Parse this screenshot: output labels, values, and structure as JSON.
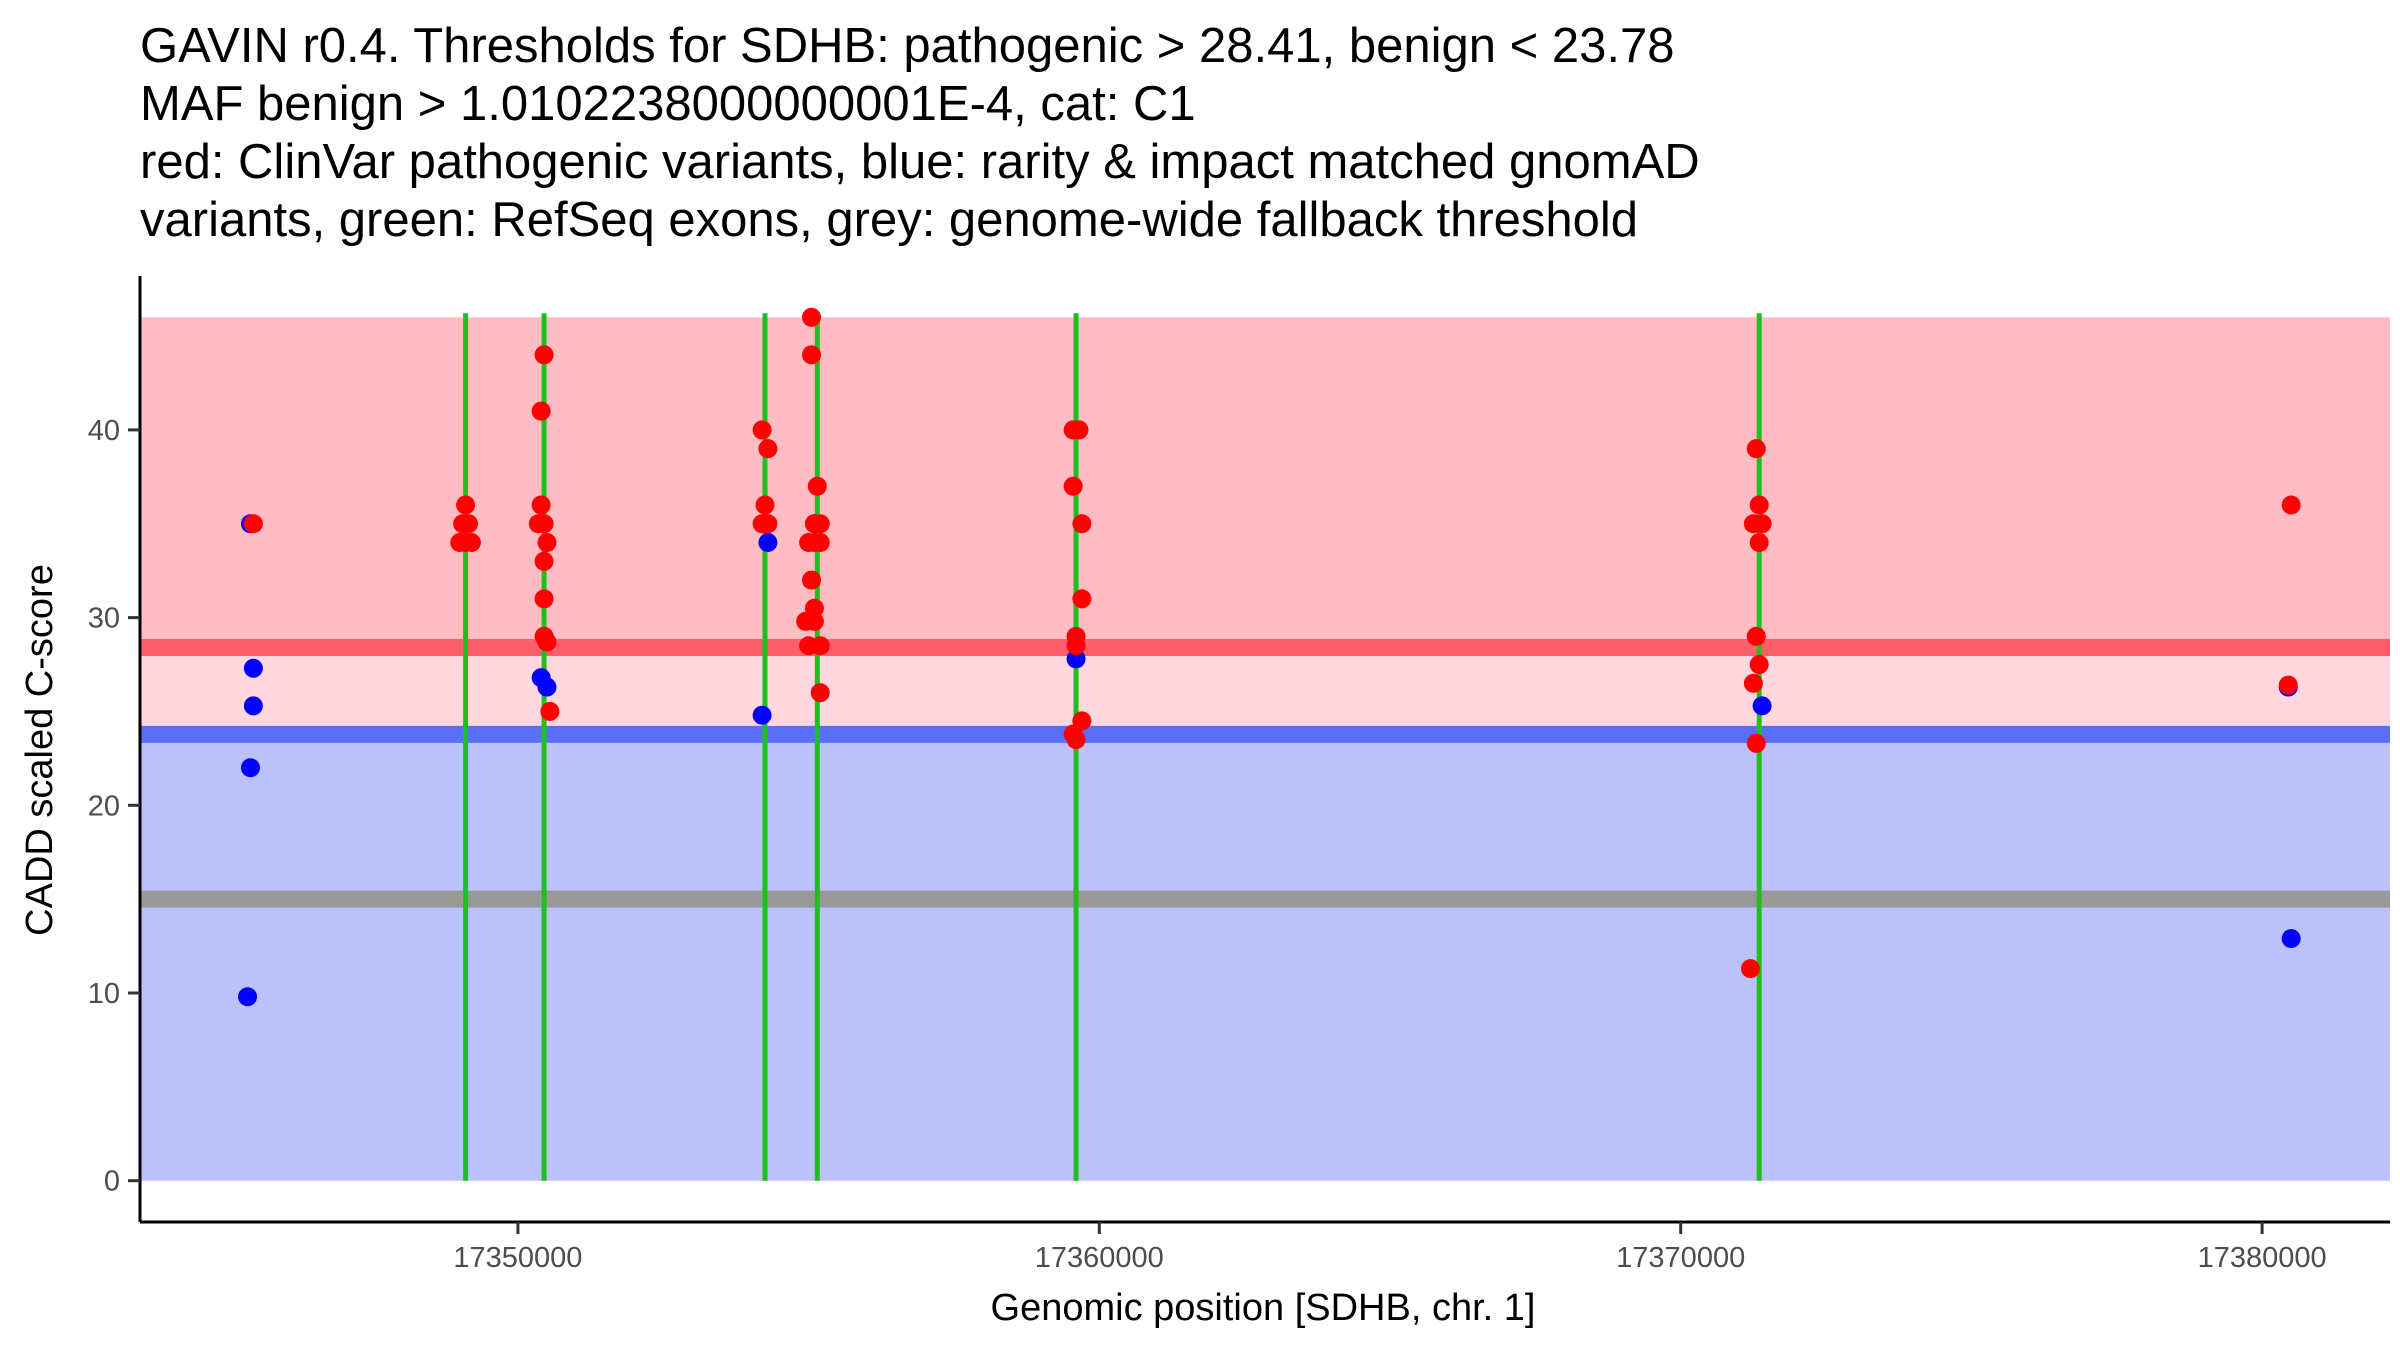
{
  "chart_data": {
    "type": "scatter",
    "title_lines": [
      "GAVIN r0.4. Thresholds for SDHB: pathogenic > 28.41, benign < 23.78",
      "MAF benign > 1.0102238000000001E-4, cat: C1",
      "red: ClinVar pathogenic variants, blue: rarity & impact matched gnomAD",
      "variants, green: RefSeq exons, grey: genome-wide fallback threshold"
    ],
    "xlabel": "Genomic position [SDHB, chr. 1]",
    "ylabel": "CADD scaled C-score",
    "xlim": [
      17343500,
      17382200
    ],
    "ylim": [
      -2.2,
      48.2
    ],
    "xticks": [
      17350000,
      17360000,
      17370000,
      17380000
    ],
    "xtick_labels": [
      "17350000",
      "17360000",
      "17370000",
      "17380000"
    ],
    "yticks": [
      0,
      10,
      20,
      30,
      40
    ],
    "ytick_labels": [
      "0",
      "10",
      "20",
      "30",
      "40"
    ],
    "thresholds": {
      "pathogenic": 28.41,
      "benign": 23.78,
      "fallback": 15.0,
      "max": 46.0
    },
    "colors": {
      "pathogenic_zone": "#ffbcc2",
      "middle_zone": "#ffd7de",
      "benign_zone": "#bbc1fa",
      "pathogenic_line": "#ff5e6a",
      "benign_line": "#5a6ff7",
      "fallback_line": "#999999",
      "exon": "#1fbf1f",
      "pathogenic_point": "#ff0000",
      "gnomad_point": "#0000ff"
    },
    "exons": [
      17349100,
      17350450,
      17354250,
      17355150,
      17359600,
      17371350
    ],
    "series": [
      {
        "name": "rarity & impact matched gnomAD variants",
        "color": "#0000ff",
        "points": [
          [
            17345400,
            35.0
          ],
          [
            17345450,
            27.3
          ],
          [
            17345450,
            25.3
          ],
          [
            17345400,
            22.0
          ],
          [
            17345350,
            9.8
          ],
          [
            17350400,
            26.8
          ],
          [
            17350500,
            26.3
          ],
          [
            17354200,
            24.8
          ],
          [
            17354300,
            34.0
          ],
          [
            17355100,
            35.0
          ],
          [
            17359600,
            27.8
          ],
          [
            17371400,
            25.3
          ],
          [
            17380450,
            26.3
          ],
          [
            17380500,
            12.9
          ]
        ]
      },
      {
        "name": "ClinVar pathogenic variants",
        "color": "#ff0000",
        "points": [
          [
            17345450,
            35.0
          ],
          [
            17349000,
            34.0
          ],
          [
            17349100,
            34.0
          ],
          [
            17349200,
            34.0
          ],
          [
            17349050,
            35.0
          ],
          [
            17349150,
            35.0
          ],
          [
            17349100,
            36.0
          ],
          [
            17350450,
            44.0
          ],
          [
            17350400,
            41.0
          ],
          [
            17350400,
            36.0
          ],
          [
            17350350,
            35.0
          ],
          [
            17350450,
            35.0
          ],
          [
            17350500,
            34.0
          ],
          [
            17350450,
            33.0
          ],
          [
            17350450,
            31.0
          ],
          [
            17350450,
            29.0
          ],
          [
            17350500,
            28.7
          ],
          [
            17350550,
            25.0
          ],
          [
            17354200,
            40.0
          ],
          [
            17354300,
            39.0
          ],
          [
            17354250,
            36.0
          ],
          [
            17354200,
            35.0
          ],
          [
            17354300,
            35.0
          ],
          [
            17355050,
            46.0
          ],
          [
            17355050,
            44.0
          ],
          [
            17355150,
            37.0
          ],
          [
            17355100,
            35.0
          ],
          [
            17355200,
            35.0
          ],
          [
            17355000,
            34.0
          ],
          [
            17355100,
            34.0
          ],
          [
            17355200,
            34.0
          ],
          [
            17355050,
            32.0
          ],
          [
            17355100,
            30.5
          ],
          [
            17354950,
            29.8
          ],
          [
            17355100,
            29.8
          ],
          [
            17355000,
            28.5
          ],
          [
            17355200,
            28.5
          ],
          [
            17355200,
            26.0
          ],
          [
            17359550,
            40.0
          ],
          [
            17359650,
            40.0
          ],
          [
            17359550,
            37.0
          ],
          [
            17359700,
            35.0
          ],
          [
            17359700,
            31.0
          ],
          [
            17359600,
            29.0
          ],
          [
            17359600,
            28.5
          ],
          [
            17359700,
            24.5
          ],
          [
            17359550,
            23.8
          ],
          [
            17359600,
            23.5
          ],
          [
            17371300,
            39.0
          ],
          [
            17371350,
            36.0
          ],
          [
            17371250,
            35.0
          ],
          [
            17371400,
            35.0
          ],
          [
            17371350,
            34.0
          ],
          [
            17371300,
            29.0
          ],
          [
            17371350,
            27.5
          ],
          [
            17371250,
            26.5
          ],
          [
            17371300,
            23.3
          ],
          [
            17371200,
            11.3
          ],
          [
            17380500,
            36.0
          ],
          [
            17380450,
            26.4
          ]
        ]
      }
    ]
  }
}
